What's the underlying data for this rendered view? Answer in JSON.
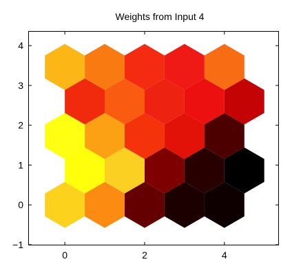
{
  "chart_data": {
    "type": "heatmap",
    "title": "Weights from Input 4",
    "xlabel": "",
    "ylabel": "",
    "xlim": [
      -0.9,
      5.35
    ],
    "ylim": [
      -1,
      4.35
    ],
    "x_ticks": [
      0,
      2,
      4
    ],
    "y_ticks": [
      -1,
      0,
      1,
      2,
      3,
      4
    ],
    "grid": false,
    "colormap": "hot",
    "cells": [
      {
        "x": 0,
        "y": 0,
        "color": "#fcd21d"
      },
      {
        "x": 1,
        "y": 0,
        "color": "#fb8c11"
      },
      {
        "x": 2,
        "y": 0,
        "color": "#650000"
      },
      {
        "x": 3,
        "y": 0,
        "color": "#1c0000"
      },
      {
        "x": 4,
        "y": 0,
        "color": "#0f0000"
      },
      {
        "x": 0.5,
        "y": 0.866,
        "color": "#ffff0b"
      },
      {
        "x": 1.5,
        "y": 0.866,
        "color": "#fcd022"
      },
      {
        "x": 2.5,
        "y": 0.866,
        "color": "#7f0000"
      },
      {
        "x": 3.5,
        "y": 0.866,
        "color": "#290000"
      },
      {
        "x": 4.5,
        "y": 0.866,
        "color": "#000000"
      },
      {
        "x": 0,
        "y": 1.732,
        "color": "#ffff11"
      },
      {
        "x": 1,
        "y": 1.732,
        "color": "#fba113"
      },
      {
        "x": 2,
        "y": 1.732,
        "color": "#f4330b"
      },
      {
        "x": 3,
        "y": 1.732,
        "color": "#e21208"
      },
      {
        "x": 4,
        "y": 1.732,
        "color": "#4c0000"
      },
      {
        "x": 0.5,
        "y": 2.598,
        "color": "#f12a0e"
      },
      {
        "x": 1.5,
        "y": 2.598,
        "color": "#f95c11"
      },
      {
        "x": 2.5,
        "y": 2.598,
        "color": "#ee2211"
      },
      {
        "x": 3.5,
        "y": 2.598,
        "color": "#ec1010"
      },
      {
        "x": 4.5,
        "y": 2.598,
        "color": "#c40404"
      },
      {
        "x": 0,
        "y": 3.464,
        "color": "#fcb615"
      },
      {
        "x": 1,
        "y": 3.464,
        "color": "#f97a11"
      },
      {
        "x": 2,
        "y": 3.464,
        "color": "#f42a11"
      },
      {
        "x": 3,
        "y": 3.464,
        "color": "#ef1a15"
      },
      {
        "x": 4,
        "y": 3.464,
        "color": "#f86c14"
      }
    ]
  }
}
